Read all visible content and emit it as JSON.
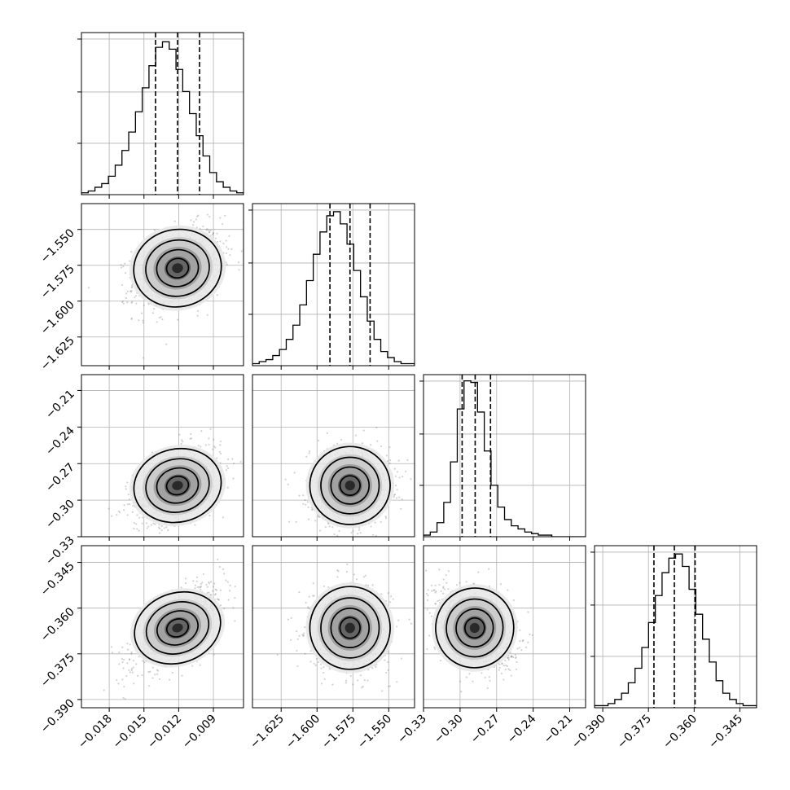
{
  "chart_data": {
    "type": "corner",
    "grid": true,
    "parameters": [
      {
        "range": [
          -0.0204,
          -0.0064
        ],
        "ticks": [
          -0.018,
          -0.015,
          -0.012,
          -0.009
        ],
        "tick_labels": [
          "−0.018",
          "−0.015",
          "−0.012",
          "−0.009"
        ],
        "quantiles": [
          -0.014,
          -0.0121,
          -0.0102
        ]
      },
      {
        "range": [
          -1.645,
          -1.532
        ],
        "ticks": [
          -1.625,
          -1.6,
          -1.575,
          -1.55
        ],
        "tick_labels": [
          "−1.625",
          "−1.600",
          "−1.575",
          "−1.550"
        ],
        "quantiles": [
          -1.591,
          -1.577,
          -1.563
        ]
      },
      {
        "range": [
          -0.33,
          -0.197
        ],
        "ticks": [
          -0.33,
          -0.3,
          -0.27,
          -0.24,
          -0.21
        ],
        "tick_labels": [
          "−0.33",
          "−0.30",
          "−0.27",
          "−0.24",
          "−0.21"
        ],
        "quantiles": [
          -0.2983,
          -0.2876,
          -0.275
        ]
      },
      {
        "range": [
          -0.3927,
          -0.3395
        ],
        "ticks": [
          -0.39,
          -0.375,
          -0.36,
          -0.345
        ],
        "tick_labels": [
          "−0.390",
          "−0.375",
          "−0.360",
          "−0.345"
        ],
        "quantiles": [
          -0.3732,
          -0.3665,
          -0.3597
        ]
      }
    ],
    "histograms": [
      {
        "counts": [
          1,
          2,
          4,
          6,
          10,
          16,
          24,
          34,
          45,
          58,
          70,
          80,
          83,
          79,
          68,
          56,
          44,
          32,
          21,
          12,
          7,
          4,
          2,
          1
        ],
        "ymax": 88
      },
      {
        "counts": [
          1,
          2,
          3,
          5,
          8,
          13,
          20,
          30,
          42,
          55,
          66,
          74,
          76,
          70,
          60,
          47,
          34,
          22,
          13,
          7,
          4,
          2,
          1,
          1
        ],
        "ymax": 80
      },
      {
        "counts": [
          1,
          3,
          9,
          22,
          48,
          82,
          100,
          99,
          80,
          55,
          33,
          19,
          11,
          7,
          5,
          3,
          2,
          1,
          1,
          0,
          0,
          0,
          0,
          0
        ],
        "ymax": 104
      },
      {
        "counts": [
          1,
          1,
          2,
          4,
          7,
          12,
          19,
          29,
          41,
          54,
          65,
          72,
          74,
          68,
          57,
          45,
          33,
          22,
          13,
          7,
          4,
          2,
          1,
          1
        ],
        "ymax": 78
      }
    ],
    "correlations": {
      "1_0": 0.35,
      "2_0": 0.45,
      "2_1": 0.05,
      "3_0": 0.7,
      "3_1": -0.05,
      "3_2": -0.35
    },
    "sigma": [
      0.0019,
      0.014,
      0.016,
      0.0068
    ],
    "mean": [
      -0.0121,
      -1.577,
      -0.288,
      -0.3665
    ]
  }
}
